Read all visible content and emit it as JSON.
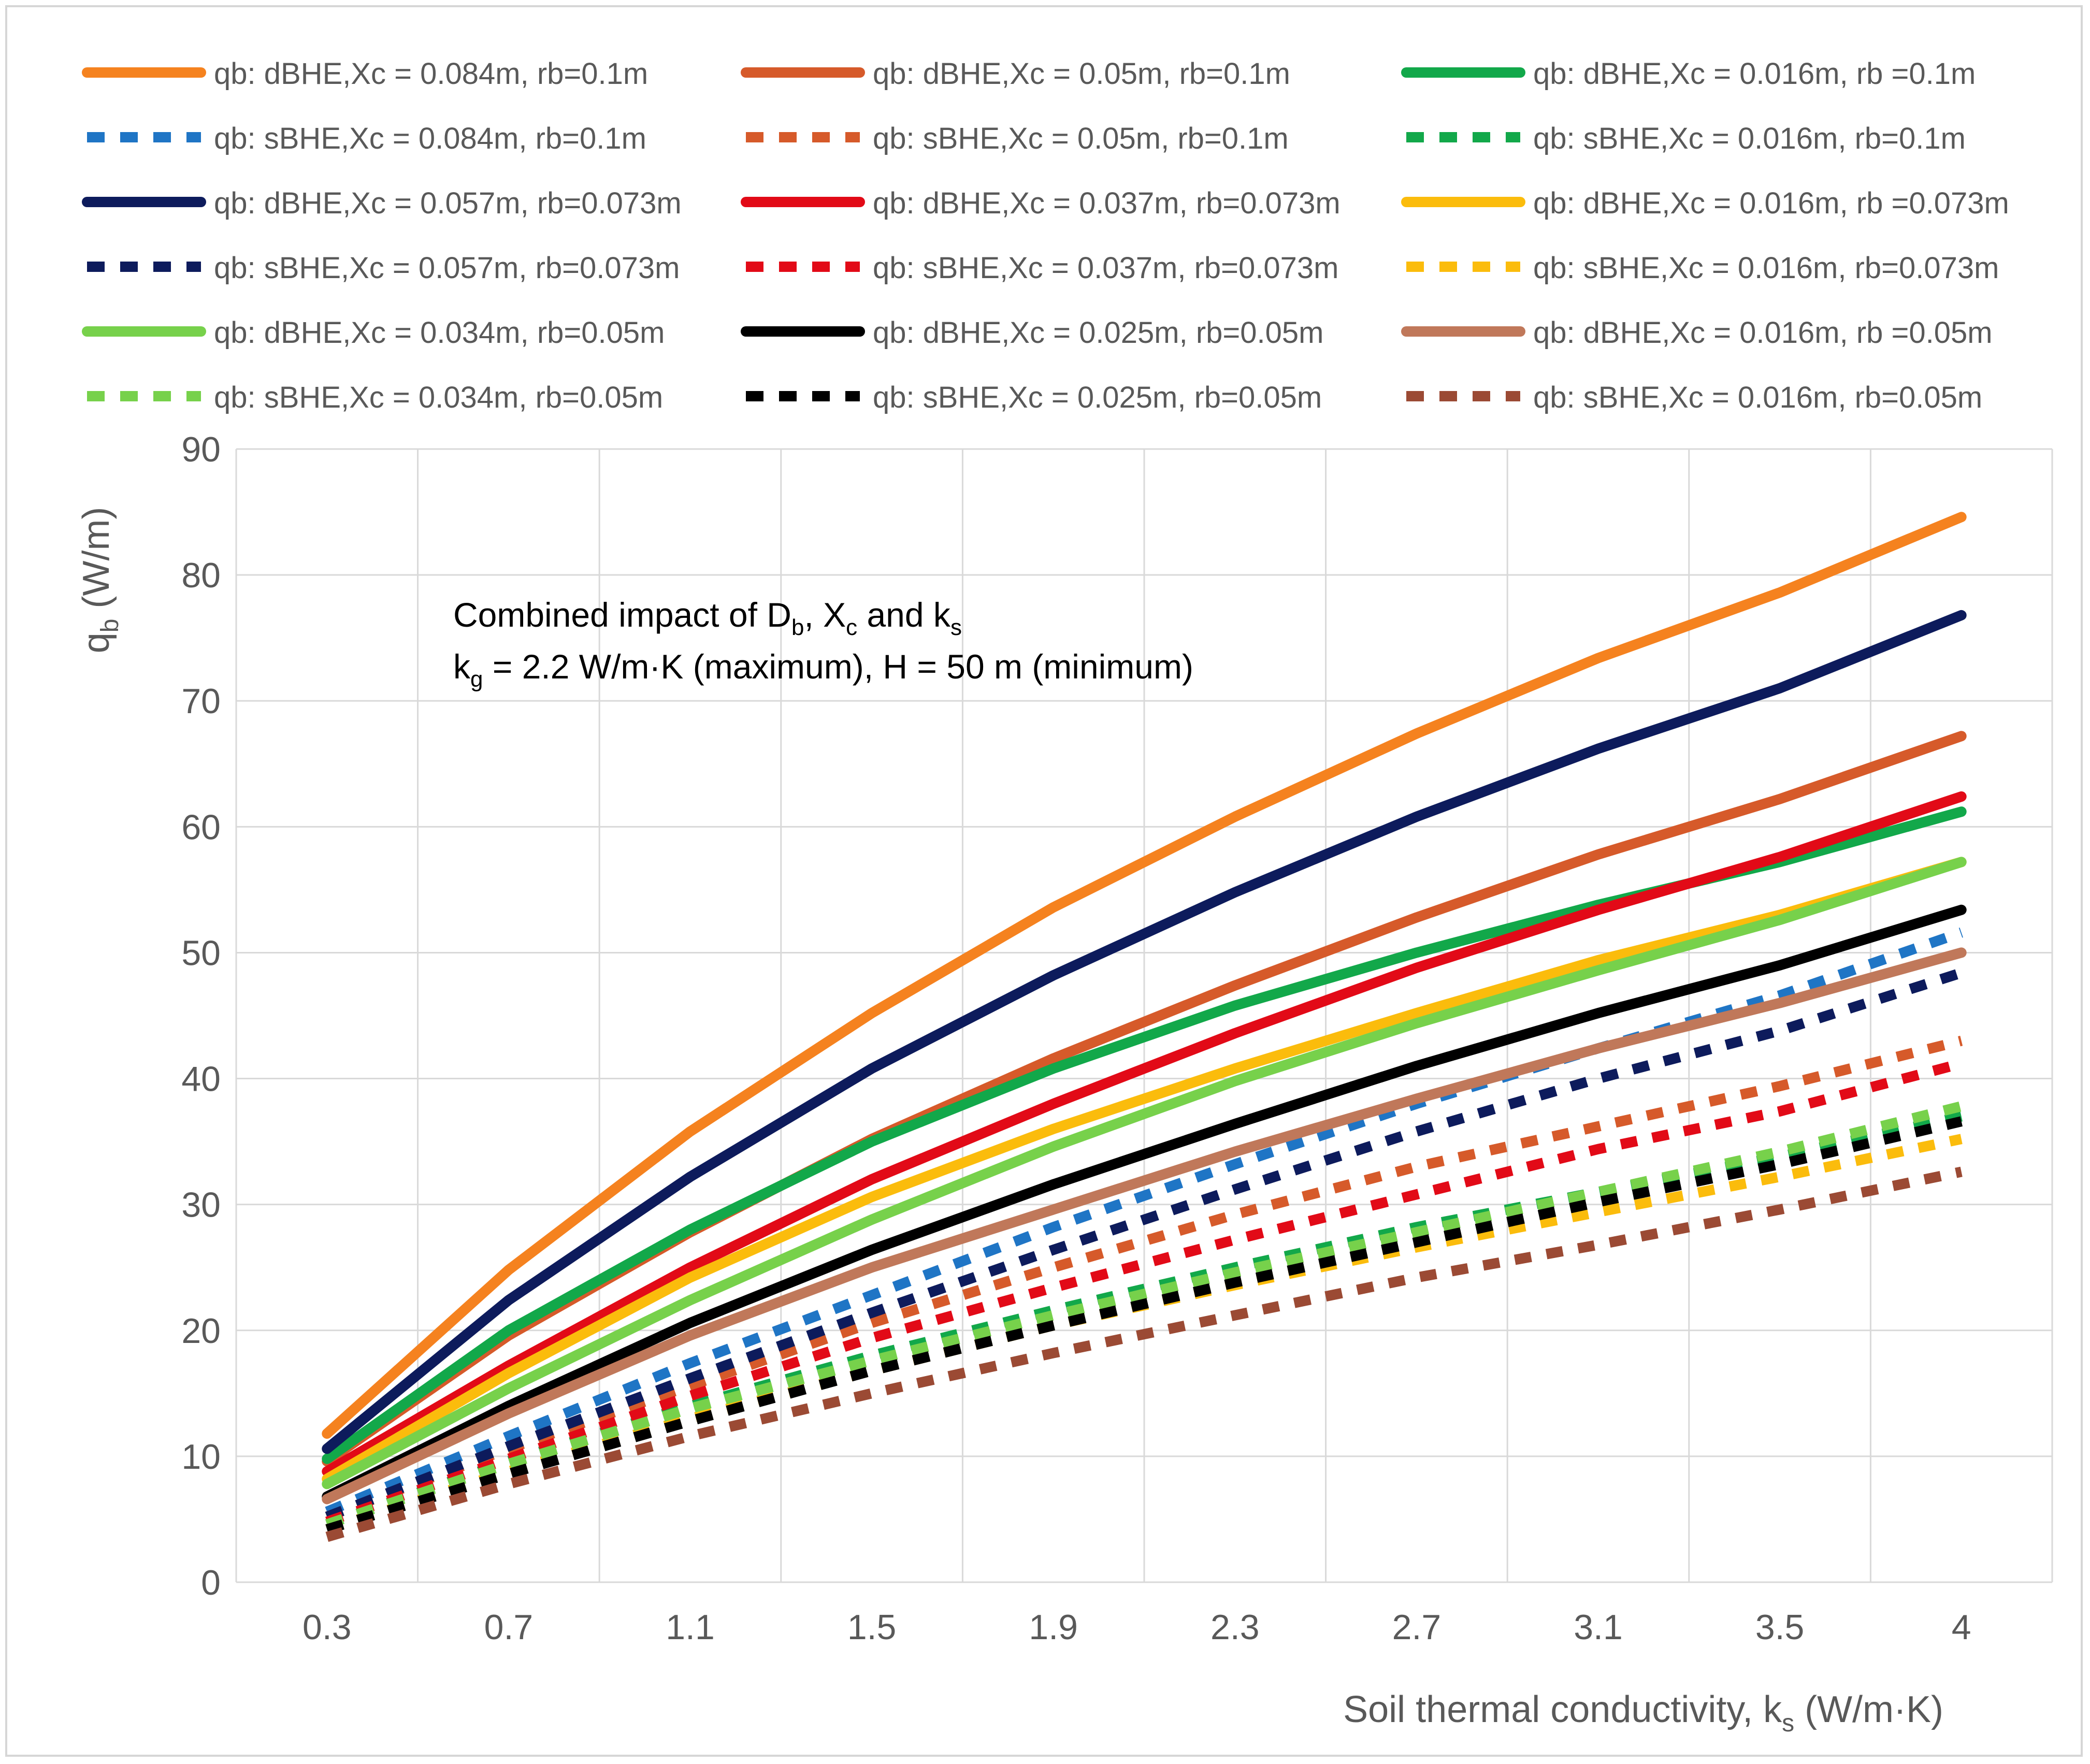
{
  "chart_data": {
    "type": "line",
    "title": "",
    "annotation": {
      "line1": {
        "prefix": "Combined impact of D",
        "sub1": "b",
        "mid": ", X",
        "sub2": "c",
        "mid2": " and k",
        "sub3": "s"
      },
      "line2": {
        "prefix": "k",
        "sub": "g",
        "rest": " = 2.2 W/m·K (maximum), H = 50 m (minimum)"
      }
    },
    "xlabel": {
      "main": "Soil thermal conductivity, k",
      "sub": "s",
      "tail": " (W/m·K)"
    },
    "ylabel": {
      "main": "q",
      "sub": "b",
      "tail": " (W/m)"
    },
    "categories": [
      "0.3",
      "0.7",
      "1.1",
      "1.5",
      "1.9",
      "2.3",
      "2.7",
      "3.1",
      "3.5",
      "4"
    ],
    "ylim": [
      0,
      90
    ],
    "yticks": [
      "0",
      "10",
      "20",
      "30",
      "40",
      "50",
      "60",
      "70",
      "80",
      "90"
    ],
    "grid": true,
    "legend_position": "top",
    "series": [
      {
        "name": "qb: dBHE,Xc = 0.084m, rb=0.1m",
        "color": "#f5821f",
        "dash": false,
        "values": [
          11.8,
          24.8,
          35.8,
          45.2,
          53.6,
          60.8,
          67.4,
          73.4,
          78.6,
          84.6
        ]
      },
      {
        "name": "qb: dBHE,Xc = 0.05m, rb=0.1m",
        "color": "#d65a2a",
        "dash": false,
        "values": [
          9.6,
          19.6,
          27.8,
          35.2,
          41.6,
          47.4,
          52.8,
          57.8,
          62.2,
          67.2
        ]
      },
      {
        "name": "qb: dBHE,Xc = 0.016m, rb =0.1m",
        "color": "#12a84a",
        "dash": false,
        "values": [
          9.8,
          20.0,
          28.0,
          35.0,
          40.8,
          45.8,
          50.0,
          53.8,
          57.2,
          61.2
        ]
      },
      {
        "name": "qb: sBHE,Xc = 0.084m, rb=0.1m",
        "color": "#1f75c5",
        "dash": true,
        "values": [
          5.6,
          11.6,
          17.4,
          22.8,
          28.2,
          33.2,
          38.0,
          42.4,
          46.6,
          51.6
        ]
      },
      {
        "name": "qb: sBHE,Xc = 0.05m, rb=0.1m",
        "color": "#d65a2a",
        "dash": true,
        "values": [
          5.2,
          10.6,
          15.6,
          20.6,
          25.0,
          29.2,
          33.0,
          36.2,
          39.4,
          43.0
        ]
      },
      {
        "name": "qb: sBHE,Xc = 0.016m, rb=0.1m",
        "color": "#12a84a",
        "dash": true,
        "values": [
          4.6,
          9.6,
          14.0,
          18.0,
          21.6,
          25.0,
          28.2,
          31.0,
          33.8,
          37.0
        ]
      },
      {
        "name": "qb: dBHE,Xc = 0.057m, rb=0.073m",
        "color": "#0d1b5c",
        "dash": false,
        "values": [
          10.6,
          22.4,
          32.2,
          40.8,
          48.2,
          54.8,
          60.8,
          66.2,
          71.0,
          76.8
        ]
      },
      {
        "name": "qb: dBHE,Xc = 0.037m, rb=0.073m",
        "color": "#e20a17",
        "dash": false,
        "values": [
          8.8,
          17.2,
          25.0,
          32.0,
          38.0,
          43.6,
          48.8,
          53.4,
          57.6,
          62.4
        ]
      },
      {
        "name": "qb: dBHE,Xc = 0.016m, rb =0.073m",
        "color": "#fbbc0c",
        "dash": false,
        "values": [
          8.2,
          16.6,
          24.2,
          30.6,
          36.0,
          40.8,
          45.2,
          49.4,
          53.0,
          57.2
        ]
      },
      {
        "name": "qb: sBHE,Xc = 0.057m, rb=0.073m",
        "color": "#0d1b5c",
        "dash": true,
        "values": [
          5.2,
          10.8,
          16.2,
          21.4,
          26.4,
          31.2,
          35.8,
          40.0,
          43.8,
          48.4
        ]
      },
      {
        "name": "qb: sBHE,Xc = 0.037m, rb=0.073m",
        "color": "#e20a17",
        "dash": true,
        "values": [
          4.8,
          9.8,
          14.8,
          19.4,
          23.4,
          27.2,
          30.8,
          34.4,
          37.4,
          41.2
        ]
      },
      {
        "name": "qb: sBHE,Xc = 0.016m, rb=0.073m",
        "color": "#fbbc0c",
        "dash": true,
        "values": [
          4.2,
          8.8,
          13.0,
          16.8,
          20.4,
          23.6,
          26.6,
          29.4,
          32.2,
          35.2
        ]
      },
      {
        "name": "qb: dBHE,Xc = 0.034m, rb=0.05m",
        "color": "#77d14b",
        "dash": false,
        "values": [
          7.8,
          15.4,
          22.4,
          28.8,
          34.6,
          39.8,
          44.4,
          48.6,
          52.6,
          57.2
        ]
      },
      {
        "name": "qb: dBHE,Xc = 0.025m, rb=0.05m",
        "color": "#000000",
        "dash": false,
        "values": [
          6.8,
          14.0,
          20.6,
          26.4,
          31.6,
          36.4,
          41.0,
          45.2,
          49.0,
          53.4
        ]
      },
      {
        "name": "qb: dBHE,Xc = 0.016m, rb =0.05m",
        "color": "#c0785a",
        "dash": false,
        "values": [
          6.6,
          13.4,
          19.6,
          25.0,
          29.6,
          34.2,
          38.4,
          42.4,
          46.0,
          50.0
        ]
      },
      {
        "name": "qb: sBHE,Xc = 0.034m, rb=0.05m",
        "color": "#77d14b",
        "dash": true,
        "values": [
          4.6,
          9.4,
          13.8,
          17.6,
          21.2,
          24.6,
          27.8,
          31.0,
          34.2,
          37.8
        ]
      },
      {
        "name": "qb: sBHE,Xc = 0.025m, rb=0.05m",
        "color": "#000000",
        "dash": true,
        "values": [
          4.2,
          8.6,
          12.8,
          16.8,
          20.4,
          23.8,
          27.0,
          30.2,
          33.2,
          36.6
        ]
      },
      {
        "name": "qb: sBHE,Xc = 0.016m, rb=0.05m",
        "color": "#9b4a34",
        "dash": true,
        "values": [
          3.6,
          7.8,
          11.6,
          15.0,
          18.2,
          21.2,
          24.2,
          26.8,
          29.6,
          32.6
        ]
      }
    ]
  }
}
